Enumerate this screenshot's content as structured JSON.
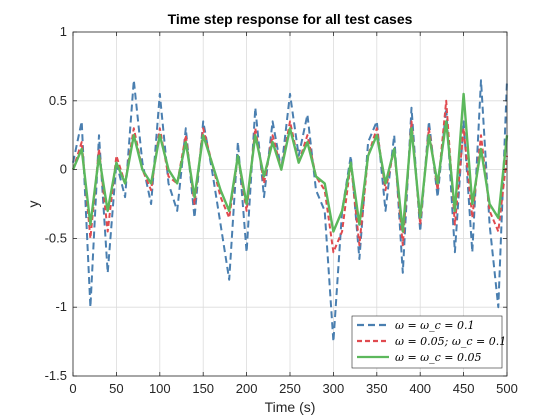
{
  "chart_data": {
    "type": "line",
    "title": "Time step response for all test cases",
    "xlabel": "Time (s)",
    "ylabel": "y",
    "xlim": [
      0,
      500
    ],
    "ylim": [
      -1.5,
      1
    ],
    "x_ticks": [
      0,
      50,
      100,
      150,
      200,
      250,
      300,
      350,
      400,
      450,
      500
    ],
    "x_tick_labels": [
      "0",
      "50",
      "100",
      "150",
      "200",
      "250",
      "300",
      "350",
      "400",
      "450",
      "500"
    ],
    "y_ticks": [
      -1.5,
      -1,
      -0.5,
      0,
      0.5,
      1
    ],
    "y_tick_labels": [
      "-1.5",
      "-1",
      "-0.5",
      "0",
      "0.5",
      "1"
    ],
    "grid": true,
    "legend_position": "bottom-right",
    "x": [
      0,
      10,
      20,
      30,
      40,
      50,
      60,
      70,
      80,
      90,
      100,
      110,
      120,
      130,
      140,
      150,
      160,
      170,
      180,
      190,
      200,
      210,
      220,
      230,
      240,
      250,
      260,
      270,
      280,
      290,
      300,
      310,
      320,
      330,
      340,
      350,
      360,
      370,
      380,
      390,
      400,
      410,
      420,
      430,
      440,
      450,
      460,
      470,
      480,
      490,
      500
    ],
    "series": [
      {
        "name": "ω = ω_c = 0.1",
        "style": "dashed",
        "color": "#4a7fb0",
        "values": [
          0.05,
          0.35,
          -1.0,
          0.25,
          -0.75,
          0.05,
          -0.2,
          0.65,
          0.05,
          -0.25,
          0.55,
          -0.1,
          -0.3,
          0.3,
          -0.35,
          0.35,
          0.0,
          -0.4,
          -0.8,
          0.2,
          -0.6,
          0.45,
          -0.2,
          0.35,
          0.0,
          0.55,
          0.1,
          0.4,
          -0.15,
          -0.3,
          -1.25,
          -0.3,
          0.1,
          -0.65,
          0.2,
          0.35,
          -0.3,
          0.25,
          -0.75,
          0.45,
          -0.45,
          0.35,
          -0.2,
          0.45,
          -0.6,
          0.35,
          -0.6,
          0.65,
          -0.4,
          -1.0,
          0.65
        ]
      },
      {
        "name": "ω = 0.05; ω_c = 0.1",
        "style": "dashed",
        "color": "#e04a4f",
        "values": [
          0.0,
          0.2,
          -0.5,
          0.15,
          -0.45,
          0.1,
          -0.1,
          0.3,
          0.0,
          -0.15,
          0.3,
          -0.05,
          -0.1,
          0.25,
          -0.25,
          0.3,
          0.05,
          -0.2,
          -0.35,
          0.1,
          -0.3,
          0.3,
          -0.1,
          0.25,
          0.0,
          0.35,
          0.05,
          0.25,
          -0.05,
          -0.15,
          -0.6,
          -0.45,
          0.05,
          -0.55,
          0.1,
          0.3,
          -0.15,
          0.15,
          -0.55,
          0.35,
          -0.4,
          0.3,
          -0.15,
          0.5,
          -0.4,
          0.3,
          -0.35,
          0.25,
          -0.3,
          -0.45,
          0.1
        ]
      },
      {
        "name": "ω = ω_c = 0.05",
        "style": "solid",
        "color": "#5cb85c",
        "values": [
          0.0,
          0.15,
          -0.4,
          0.1,
          -0.3,
          0.05,
          -0.1,
          0.25,
          0.0,
          -0.1,
          0.25,
          0.0,
          -0.1,
          0.2,
          -0.2,
          0.25,
          0.05,
          -0.15,
          -0.3,
          0.1,
          -0.25,
          0.25,
          -0.05,
          0.2,
          0.0,
          0.3,
          0.05,
          0.2,
          -0.05,
          -0.1,
          -0.45,
          -0.3,
          0.05,
          -0.4,
          0.1,
          0.25,
          -0.1,
          0.15,
          -0.45,
          0.3,
          -0.35,
          0.25,
          -0.1,
          0.35,
          -0.3,
          0.55,
          -0.25,
          0.15,
          -0.25,
          -0.35,
          0.25
        ]
      }
    ]
  }
}
